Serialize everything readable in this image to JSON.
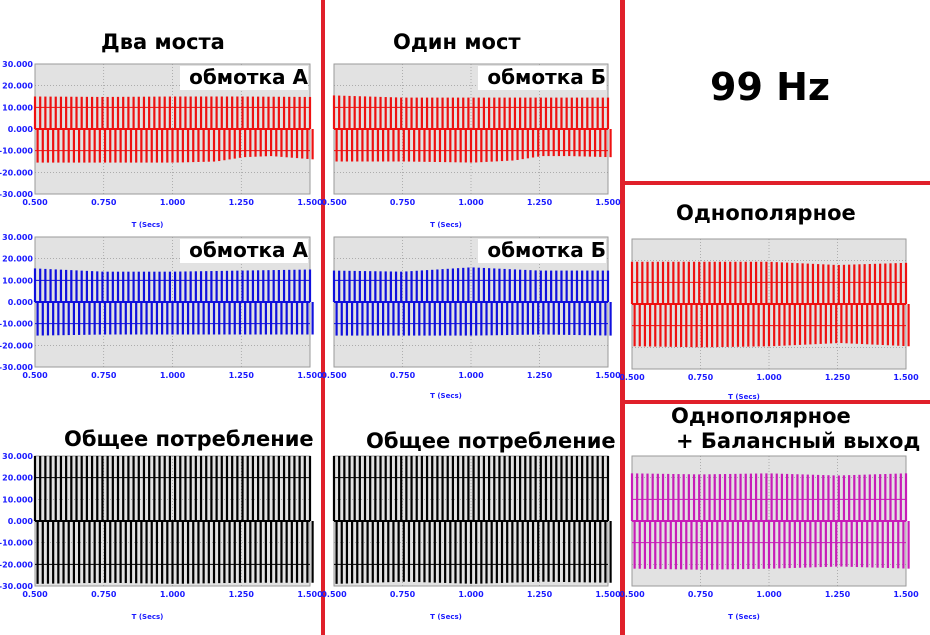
{
  "headings": {
    "two_bridges": "Два моста",
    "one_bridge": "Один мост",
    "frequency": "99 Hz",
    "unipolar": "Однополярное",
    "unipolar_balanced_line1": "Однополярное",
    "unipolar_balanced_line2": "+ Балансный выход",
    "total_left": "Общее потребление",
    "total_middle": "Общее потребление"
  },
  "colors": {
    "divider": "#e0202a",
    "plot_background": "#e2e2e2",
    "axis_text": "#1a1aff",
    "red": "#ee1111",
    "blue": "#1010dd",
    "black": "#000000",
    "magenta": "#c81cb8"
  },
  "chart_data": [
    {
      "id": "two-bridges-winding-a",
      "type": "line",
      "panel_label": "обмотка А",
      "color": "#ee1111",
      "xlabel": "T (Secs)",
      "xlim": [
        0.5,
        1.5
      ],
      "ylim": [
        -30,
        30
      ],
      "xticks": [
        "0.500",
        "0.750",
        "1.000",
        "1.250",
        "1.500"
      ],
      "yticks": [
        "30.000",
        "20.000",
        "10.000",
        "0.000",
        "-10.000",
        "-20.000",
        "-30.000"
      ],
      "cycles": 53,
      "envelope_pos": [
        {
          "x": 0.5,
          "y": 15.0
        },
        {
          "x": 0.75,
          "y": 14.8
        },
        {
          "x": 1.0,
          "y": 15.0
        },
        {
          "x": 1.25,
          "y": 15.0
        },
        {
          "x": 1.5,
          "y": 14.8
        }
      ],
      "envelope_neg": [
        {
          "x": 0.5,
          "y": -15.5
        },
        {
          "x": 0.75,
          "y": -15.5
        },
        {
          "x": 1.0,
          "y": -15.5
        },
        {
          "x": 1.15,
          "y": -15.0
        },
        {
          "x": 1.25,
          "y": -13.0
        },
        {
          "x": 1.35,
          "y": -12.5
        },
        {
          "x": 1.5,
          "y": -14.0
        }
      ],
      "inner_pos": 10.0,
      "inner_neg": -10.0
    },
    {
      "id": "one-bridge-winding-b",
      "type": "line",
      "panel_label": "обмотка Б",
      "color": "#ee1111",
      "xlabel": "T (Secs)",
      "xlim": [
        0.5,
        1.5
      ],
      "ylim": [
        -30,
        30
      ],
      "xticks": [
        "0.500",
        "0.750",
        "1.000",
        "1.250",
        "1.500"
      ],
      "yticks": [],
      "cycles": 53,
      "envelope_pos": [
        {
          "x": 0.5,
          "y": 15.5
        },
        {
          "x": 0.75,
          "y": 14.5
        },
        {
          "x": 1.0,
          "y": 14.5
        },
        {
          "x": 1.25,
          "y": 14.5
        },
        {
          "x": 1.5,
          "y": 14.5
        }
      ],
      "envelope_neg": [
        {
          "x": 0.5,
          "y": -15.0
        },
        {
          "x": 0.75,
          "y": -15.0
        },
        {
          "x": 1.0,
          "y": -15.5
        },
        {
          "x": 1.15,
          "y": -14.5
        },
        {
          "x": 1.25,
          "y": -12.5
        },
        {
          "x": 1.35,
          "y": -12.5
        },
        {
          "x": 1.5,
          "y": -13.0
        }
      ],
      "inner_pos": 10.0,
      "inner_neg": -10.0
    },
    {
      "id": "two-bridges-winding-a-blue",
      "type": "line",
      "panel_label": "обмотка А",
      "color": "#1010dd",
      "xlabel": "",
      "xlim": [
        0.5,
        1.5
      ],
      "ylim": [
        -30,
        30
      ],
      "xticks": [
        "0.500",
        "0.750",
        "1.000",
        "1.250",
        "1.500"
      ],
      "yticks": [
        "30.000",
        "20.000",
        "10.000",
        "0.000",
        "-10.000",
        "-20.000",
        "-30.000"
      ],
      "cycles": 53,
      "envelope_pos": [
        {
          "x": 0.5,
          "y": 15.5
        },
        {
          "x": 0.75,
          "y": 14.0
        },
        {
          "x": 1.0,
          "y": 14.0
        },
        {
          "x": 1.25,
          "y": 14.5
        },
        {
          "x": 1.5,
          "y": 15.0
        }
      ],
      "envelope_neg": [
        {
          "x": 0.5,
          "y": -15.5
        },
        {
          "x": 0.75,
          "y": -15.0
        },
        {
          "x": 1.0,
          "y": -15.0
        },
        {
          "x": 1.25,
          "y": -15.0
        },
        {
          "x": 1.5,
          "y": -15.0
        }
      ],
      "inner_pos": 10.0,
      "inner_neg": -10.0
    },
    {
      "id": "one-bridge-winding-b-blue",
      "type": "line",
      "panel_label": "обмотка Б",
      "color": "#1010dd",
      "xlabel": "T (Secs)",
      "xlim": [
        0.5,
        1.5
      ],
      "ylim": [
        -30,
        30
      ],
      "xticks": [
        "0.500",
        "0.750",
        "1.000",
        "1.250",
        "1.500"
      ],
      "yticks": [],
      "cycles": 53,
      "envelope_pos": [
        {
          "x": 0.5,
          "y": 14.5
        },
        {
          "x": 0.75,
          "y": 14.0
        },
        {
          "x": 1.0,
          "y": 16.0
        },
        {
          "x": 1.25,
          "y": 14.5
        },
        {
          "x": 1.5,
          "y": 14.5
        }
      ],
      "envelope_neg": [
        {
          "x": 0.5,
          "y": -15.5
        },
        {
          "x": 0.75,
          "y": -15.5
        },
        {
          "x": 1.0,
          "y": -15.5
        },
        {
          "x": 1.25,
          "y": -15.0
        },
        {
          "x": 1.5,
          "y": -15.5
        }
      ],
      "inner_pos": 10.0,
      "inner_neg": -10.0
    },
    {
      "id": "unipolar",
      "type": "line",
      "panel_label": "",
      "color": "#ee1111",
      "xlabel": "T (Secs)",
      "xlim": [
        0.5,
        1.5
      ],
      "ylim": [
        -30,
        30
      ],
      "xticks": [
        "0.500",
        "0.750",
        "1.000",
        "1.250",
        "1.500"
      ],
      "yticks": [],
      "cycles": 53,
      "envelope_pos": [
        {
          "x": 0.5,
          "y": 19.5
        },
        {
          "x": 0.75,
          "y": 19.5
        },
        {
          "x": 1.0,
          "y": 19.5
        },
        {
          "x": 1.25,
          "y": 18.0
        },
        {
          "x": 1.5,
          "y": 19.0
        }
      ],
      "envelope_neg": [
        {
          "x": 0.5,
          "y": -19.5
        },
        {
          "x": 0.75,
          "y": -20.0
        },
        {
          "x": 1.0,
          "y": -19.5
        },
        {
          "x": 1.25,
          "y": -18.0
        },
        {
          "x": 1.5,
          "y": -19.5
        }
      ],
      "inner_pos": 10.0,
      "inner_neg": -10.0
    },
    {
      "id": "two-bridges-total",
      "type": "line",
      "panel_label": "",
      "color": "#000000",
      "xlabel": "T (Secs)",
      "xlim": [
        0.5,
        1.5
      ],
      "ylim": [
        -30,
        30
      ],
      "xticks": [
        "0.500",
        "0.750",
        "1.000",
        "1.250",
        "1.500"
      ],
      "yticks": [
        "30.000",
        "20.000",
        "10.000",
        "0.000",
        "-10.000",
        "-20.000",
        "-30.000"
      ],
      "cycles": 53,
      "envelope_pos": [
        {
          "x": 0.5,
          "y": 30.0
        },
        {
          "x": 1.0,
          "y": 30.0
        },
        {
          "x": 1.5,
          "y": 30.0
        }
      ],
      "envelope_neg": [
        {
          "x": 0.5,
          "y": -29.0
        },
        {
          "x": 0.75,
          "y": -28.5
        },
        {
          "x": 1.0,
          "y": -29.0
        },
        {
          "x": 1.25,
          "y": -28.5
        },
        {
          "x": 1.5,
          "y": -28.5
        }
      ],
      "inner_pos": 20.0,
      "inner_neg": -20.0
    },
    {
      "id": "one-bridge-total",
      "type": "line",
      "panel_label": "",
      "color": "#000000",
      "xlabel": "T (Secs)",
      "xlim": [
        0.5,
        1.5
      ],
      "ylim": [
        -30,
        30
      ],
      "xticks": [
        "0.500",
        "0.750",
        "1.000",
        "1.250",
        "1.500"
      ],
      "yticks": [],
      "cycles": 53,
      "envelope_pos": [
        {
          "x": 0.5,
          "y": 30.0
        },
        {
          "x": 1.0,
          "y": 30.0
        },
        {
          "x": 1.5,
          "y": 30.0
        }
      ],
      "envelope_neg": [
        {
          "x": 0.5,
          "y": -29.0
        },
        {
          "x": 0.75,
          "y": -28.0
        },
        {
          "x": 1.0,
          "y": -29.0
        },
        {
          "x": 1.25,
          "y": -28.0
        },
        {
          "x": 1.5,
          "y": -28.5
        }
      ],
      "inner_pos": 20.0,
      "inner_neg": -20.0
    },
    {
      "id": "unipolar-balanced",
      "type": "line",
      "panel_label": "",
      "color": "#c81cb8",
      "xlabel": "T (Secs)",
      "xlim": [
        0.5,
        1.5
      ],
      "ylim": [
        -30,
        30
      ],
      "xticks": [
        "0.500",
        "0.750",
        "1.000",
        "1.250",
        "1.500"
      ],
      "yticks": [],
      "cycles": 53,
      "envelope_pos": [
        {
          "x": 0.5,
          "y": 22.0
        },
        {
          "x": 0.75,
          "y": 21.5
        },
        {
          "x": 1.0,
          "y": 22.0
        },
        {
          "x": 1.25,
          "y": 21.0
        },
        {
          "x": 1.5,
          "y": 22.0
        }
      ],
      "envelope_neg": [
        {
          "x": 0.5,
          "y": -22.0
        },
        {
          "x": 0.75,
          "y": -22.5
        },
        {
          "x": 1.0,
          "y": -22.0
        },
        {
          "x": 1.25,
          "y": -21.0
        },
        {
          "x": 1.5,
          "y": -22.0
        }
      ],
      "inner_pos": 10.0,
      "inner_neg": -10.0
    }
  ]
}
